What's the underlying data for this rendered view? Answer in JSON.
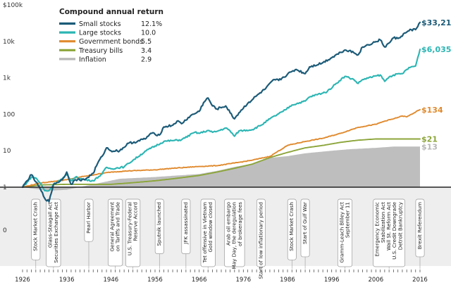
{
  "chart_data": {
    "type": "line",
    "y_scale": "log",
    "ylim": [
      1,
      100000
    ],
    "y_ticks": [
      {
        "value": 100000,
        "label": "$100k"
      },
      {
        "value": 10000,
        "label": "10k"
      },
      {
        "value": 1000,
        "label": "1k"
      },
      {
        "value": 100,
        "label": "100"
      },
      {
        "value": 10,
        "label": "10"
      },
      {
        "value": 1,
        "label": "1"
      }
    ],
    "y_zero_label": "0",
    "xlim": [
      1926,
      2016
    ],
    "x_tick_labels": [
      "1926",
      "1936",
      "1946",
      "1956",
      "1966",
      "1976",
      "1986",
      "1996",
      "2006",
      "2016"
    ],
    "grid": false,
    "legend": {
      "title": "Compound annual return",
      "position": "top-left",
      "items": [
        {
          "name": "Small stocks",
          "value": "12.1%",
          "color": "#1c5b78"
        },
        {
          "name": "Large stocks",
          "value": "10.0",
          "color": "#2bb5b3"
        },
        {
          "name": "Government bonds",
          "value": "5.5",
          "color": "#e08a2e"
        },
        {
          "name": "Treasury bills",
          "value": "3.4",
          "color": "#8ca53a"
        },
        {
          "name": "Inflation",
          "value": "2.9",
          "color": "#b7b7b7"
        }
      ]
    },
    "series": [
      {
        "name": "Small stocks",
        "color": "#1c5b78",
        "end_label": "$33,212",
        "x": [
          1926,
          1927,
          1928,
          1929,
          1930,
          1931,
          1932,
          1933,
          1935,
          1936,
          1937,
          1938,
          1940,
          1942,
          1943,
          1944,
          1945,
          1946,
          1948,
          1950,
          1952,
          1954,
          1955,
          1957,
          1958,
          1960,
          1961,
          1962,
          1964,
          1966,
          1967,
          1968,
          1969,
          1970,
          1972,
          1973,
          1974,
          1975,
          1977,
          1979,
          1981,
          1983,
          1984,
          1987,
          1988,
          1990,
          1991,
          1994,
          1998,
          1999,
          2000,
          2002,
          2003,
          2007,
          2008,
          2009,
          2010,
          2011,
          2013,
          2014,
          2015,
          2016
        ],
        "y": [
          1,
          1.5,
          2.2,
          1.4,
          0.9,
          0.5,
          0.4,
          1.2,
          1.6,
          2.6,
          1.2,
          1.6,
          1.6,
          2.4,
          4.5,
          7,
          12,
          10,
          10,
          16,
          18,
          22,
          30,
          27,
          45,
          50,
          65,
          55,
          90,
          120,
          210,
          280,
          170,
          140,
          170,
          110,
          75,
          110,
          200,
          320,
          500,
          900,
          850,
          1500,
          1700,
          1300,
          2000,
          2600,
          5000,
          5800,
          5600,
          4300,
          7000,
          11000,
          7000,
          9000,
          12500,
          12000,
          18000,
          21000,
          21000,
          33212
        ]
      },
      {
        "name": "Large stocks",
        "color": "#2bb5b3",
        "end_label": "$6,035",
        "x": [
          1926,
          1927,
          1928,
          1929,
          1930,
          1931,
          1932,
          1933,
          1935,
          1936,
          1937,
          1938,
          1940,
          1942,
          1944,
          1945,
          1946,
          1949,
          1950,
          1954,
          1958,
          1960,
          1962,
          1965,
          1966,
          1968,
          1969,
          1970,
          1972,
          1973,
          1974,
          1975,
          1978,
          1980,
          1982,
          1985,
          1987,
          1990,
          1991,
          1995,
          1997,
          1999,
          2000,
          2001,
          2002,
          2003,
          2007,
          2008,
          2009,
          2010,
          2012,
          2013,
          2014,
          2015,
          2016
        ],
        "y": [
          1,
          1.35,
          1.9,
          1.8,
          1.3,
          0.8,
          0.8,
          1.2,
          1.7,
          2.2,
          1.5,
          1.9,
          1.6,
          1.5,
          2.3,
          3.5,
          3.2,
          3.6,
          4.5,
          10,
          18,
          19,
          20,
          32,
          30,
          36,
          32,
          34,
          42,
          35,
          25,
          35,
          38,
          50,
          75,
          120,
          180,
          230,
          300,
          420,
          700,
          1100,
          1000,
          900,
          700,
          900,
          1200,
          800,
          1050,
          1200,
          1300,
          1700,
          2000,
          2100,
          6035
        ]
      },
      {
        "name": "Government bonds",
        "color": "#e08a2e",
        "end_label": "$134",
        "x": [
          1926,
          1930,
          1936,
          1940,
          1946,
          1950,
          1956,
          1960,
          1966,
          1970,
          1974,
          1978,
          1982,
          1986,
          1990,
          1994,
          1998,
          2002,
          2006,
          2008,
          2010,
          2012,
          2013,
          2016
        ],
        "y": [
          1,
          1.3,
          1.6,
          2.0,
          2.6,
          2.8,
          3.0,
          3.3,
          3.7,
          3.9,
          4.6,
          5.5,
          7,
          14,
          18,
          22,
          30,
          44,
          53,
          65,
          75,
          90,
          85,
          134
        ]
      },
      {
        "name": "Treasury bills",
        "color": "#8ca53a",
        "end_label": "$21",
        "x": [
          1926,
          1930,
          1936,
          1940,
          1946,
          1950,
          1956,
          1960,
          1966,
          1970,
          1974,
          1978,
          1982,
          1986,
          1990,
          1994,
          1998,
          2002,
          2006,
          2008,
          2010,
          2016
        ],
        "y": [
          1,
          1.15,
          1.2,
          1.2,
          1.2,
          1.3,
          1.5,
          1.7,
          2.1,
          2.6,
          3.3,
          4.3,
          6.5,
          9,
          12,
          14,
          17,
          19.5,
          21,
          21,
          21,
          21
        ]
      },
      {
        "name": "Inflation",
        "color": "#b7b7b7",
        "end_label": "$13",
        "x": [
          1926,
          1932,
          1936,
          1942,
          1948,
          1956,
          1966,
          1970,
          1974,
          1978,
          1982,
          1986,
          1990,
          1996,
          2000,
          2006,
          2010,
          2016
        ],
        "y": [
          1,
          0.8,
          0.85,
          1.2,
          1.7,
          1.9,
          2.3,
          2.8,
          3.6,
          4.4,
          6.4,
          7.1,
          8.5,
          10,
          11,
          12,
          13,
          13
        ]
      }
    ],
    "events": [
      {
        "year": 1929,
        "lines": [
          "Stock Market Crash"
        ]
      },
      {
        "year": 1933,
        "lines": [
          "Glass-Steagall Act",
          "Securities Exchange Act"
        ]
      },
      {
        "year": 1941,
        "lines": [
          "Pearl Harbor"
        ]
      },
      {
        "year": 1947,
        "lines": [
          "General Agreement",
          "on Tariffs and Trade"
        ]
      },
      {
        "year": 1951,
        "lines": [
          "U.S. Treasury-Federal",
          "Reserve Accord"
        ]
      },
      {
        "year": 1957,
        "lines": [
          "Sputnik launched"
        ]
      },
      {
        "year": 1963,
        "lines": [
          "JFK assassinated"
        ]
      },
      {
        "year": 1968,
        "lines": [
          "Tet offensive in Vietnam",
          "Gold window closed"
        ]
      },
      {
        "year": 1974,
        "lines": [
          "Arab oil embargo",
          "May Day, the deregulation",
          "of brokerage fees"
        ]
      },
      {
        "year": 1980,
        "lines": [
          "Start of low inflationary period"
        ]
      },
      {
        "year": 1987,
        "lines": [
          "Stock Market Crash"
        ]
      },
      {
        "year": 1990,
        "lines": [
          "Start of Gulf War"
        ]
      },
      {
        "year": 1999,
        "lines": [
          "Gramm-Leach Bliley Act",
          "September 11"
        ]
      },
      {
        "year": 2009,
        "lines": [
          "Emergency Economic",
          "Stabilization Act",
          "Wall St. Reform Act",
          "U.S. Credit Downgrade",
          "Detroit Bankruptcy"
        ]
      },
      {
        "year": 2016,
        "lines": [
          "Brexit Referendum"
        ]
      }
    ]
  }
}
